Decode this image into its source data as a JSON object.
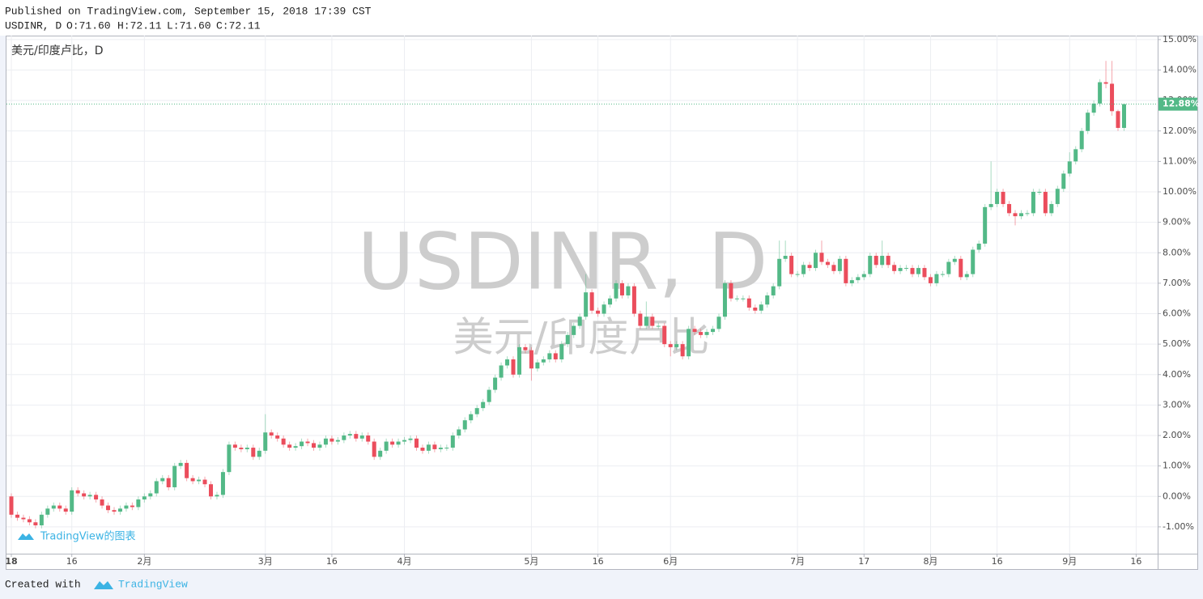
{
  "header": {
    "published": "Published on TradingView.com, September 15, 2018 17:39 CST",
    "symbol": "USDINR, D",
    "open": "O:71.60",
    "high": "H:72.11",
    "low": "L:71.60",
    "close": "C:72.11"
  },
  "footer": {
    "created_with": "Created with",
    "brand": "TradingView"
  },
  "chart_data": {
    "type": "candlestick",
    "pane_label": "美元/印度卢比，D",
    "watermark": "USDINR, D",
    "watermark_sub": "美元/印度卢比",
    "logo_text": "TradingView的图表",
    "up_color": "#53b987",
    "down_color": "#eb4d5c",
    "grid": true,
    "ylim": [
      -1.88,
      15.13
    ],
    "yticks": [
      {
        "value": 15,
        "label": "15.00%"
      },
      {
        "value": 14,
        "label": "14.00%"
      },
      {
        "value": 13,
        "label": "13.00%"
      },
      {
        "value": 12,
        "label": "12.00%"
      },
      {
        "value": 11,
        "label": "11.00%"
      },
      {
        "value": 10,
        "label": "10.00%"
      },
      {
        "value": 9,
        "label": "9.00%"
      },
      {
        "value": 8,
        "label": "8.00%"
      },
      {
        "value": 7,
        "label": "7.00%"
      },
      {
        "value": 6,
        "label": "6.00%"
      },
      {
        "value": 5,
        "label": "5.00%"
      },
      {
        "value": 4,
        "label": "4.00%"
      },
      {
        "value": 3,
        "label": "3.00%"
      },
      {
        "value": 2,
        "label": "2.00%"
      },
      {
        "value": 1,
        "label": "1.00%"
      },
      {
        "value": 0,
        "label": "0.00%"
      },
      {
        "value": -1,
        "label": "-1.00%"
      }
    ],
    "price_line": {
      "value": 12.88,
      "label": "12.88%"
    },
    "categories": [
      "18",
      null,
      null,
      null,
      null,
      null,
      null,
      null,
      null,
      null,
      "16",
      null,
      null,
      null,
      null,
      null,
      null,
      null,
      null,
      null,
      null,
      null,
      "2月",
      null,
      null,
      null,
      null,
      null,
      null,
      null,
      null,
      null,
      null,
      null,
      null,
      null,
      null,
      null,
      null,
      null,
      null,
      null,
      "3月",
      null,
      null,
      null,
      null,
      null,
      null,
      null,
      null,
      null,
      null,
      "16",
      null,
      null,
      null,
      null,
      null,
      null,
      null,
      null,
      null,
      null,
      null,
      "4月",
      null,
      null,
      null,
      null,
      null,
      null,
      null,
      null,
      null,
      null,
      null,
      null,
      null,
      null,
      null,
      null,
      null,
      null,
      null,
      null,
      "5月",
      null,
      null,
      null,
      null,
      null,
      null,
      null,
      null,
      null,
      null,
      "16",
      null,
      null,
      null,
      null,
      null,
      null,
      null,
      null,
      null,
      null,
      null,
      "6月",
      null,
      null,
      null,
      null,
      null,
      null,
      null,
      null,
      null,
      null,
      null,
      null,
      null,
      null,
      null,
      null,
      null,
      null,
      null,
      null,
      "7月",
      null,
      null,
      null,
      null,
      null,
      null,
      null,
      null,
      null,
      null,
      "17",
      null,
      null,
      null,
      null,
      null,
      null,
      null,
      null,
      null,
      null,
      "8月",
      null,
      null,
      null,
      null,
      null,
      null,
      null,
      null,
      null,
      null,
      "16",
      null,
      null,
      null,
      null,
      null,
      null,
      null,
      null,
      null,
      null,
      null,
      "9月",
      null,
      null,
      null,
      null,
      null,
      null,
      null,
      null,
      null,
      null,
      "16"
    ],
    "open": [
      0.0,
      -0.6,
      -0.7,
      -0.75,
      -0.85,
      -0.95,
      -0.6,
      -0.4,
      -0.3,
      -0.4,
      -0.5,
      0.2,
      0.1,
      0.0,
      0.05,
      -0.1,
      -0.3,
      -0.45,
      -0.5,
      -0.4,
      -0.3,
      -0.35,
      -0.1,
      0.0,
      0.1,
      0.5,
      0.6,
      0.3,
      1.0,
      1.1,
      0.6,
      0.5,
      0.55,
      0.4,
      0.0,
      0.05,
      0.8,
      1.7,
      1.6,
      1.55,
      1.6,
      1.3,
      1.5,
      2.1,
      2.0,
      1.9,
      1.7,
      1.6,
      1.65,
      1.8,
      1.75,
      1.6,
      1.7,
      1.9,
      1.8,
      1.85,
      2.0,
      2.05,
      1.9,
      2.0,
      1.8,
      1.3,
      1.5,
      1.8,
      1.7,
      1.8,
      1.85,
      1.9,
      1.6,
      1.5,
      1.7,
      1.55,
      1.6,
      1.6,
      2.0,
      2.2,
      2.5,
      2.7,
      2.9,
      3.1,
      3.5,
      3.9,
      4.3,
      4.5,
      4.0,
      4.9,
      4.8,
      4.2,
      4.4,
      4.5,
      4.7,
      4.5,
      5.0,
      5.3,
      5.6,
      5.9,
      6.7,
      6.1,
      6.0,
      6.3,
      6.5,
      7.0,
      6.6,
      6.9,
      6.0,
      5.6,
      5.9,
      5.6,
      5.6,
      5.0,
      4.9,
      5.0,
      4.6,
      5.5,
      5.4,
      5.3,
      5.4,
      5.5,
      5.9,
      7.0,
      6.5,
      6.5,
      6.5,
      6.2,
      6.1,
      6.3,
      6.6,
      6.9,
      7.8,
      7.9,
      7.3,
      7.3,
      7.6,
      7.5,
      8.0,
      7.7,
      7.6,
      7.4,
      7.8,
      7.0,
      7.1,
      7.2,
      7.3,
      7.9,
      7.6,
      7.9,
      7.6,
      7.4,
      7.5,
      7.5,
      7.3,
      7.5,
      7.2,
      7.0,
      7.3,
      7.3,
      7.7,
      7.8,
      7.2,
      7.3,
      8.1,
      8.3,
      9.5,
      9.6,
      10.0,
      9.6,
      9.3,
      9.2,
      9.3,
      9.3,
      10.0,
      10.0,
      9.3,
      9.6,
      10.1,
      10.6,
      11.0,
      11.4,
      12.0,
      12.6,
      12.9,
      13.6,
      13.55,
      12.65,
      12.1,
      null,
      null
    ],
    "high": [
      0.1,
      -0.5,
      -0.6,
      -0.65,
      -0.75,
      -0.5,
      -0.3,
      -0.2,
      -0.2,
      -0.3,
      0.3,
      0.3,
      0.2,
      0.15,
      0.15,
      0.0,
      -0.2,
      -0.35,
      -0.3,
      -0.2,
      -0.2,
      0.0,
      0.1,
      0.2,
      0.6,
      0.7,
      0.7,
      1.1,
      1.2,
      1.2,
      0.7,
      0.65,
      0.65,
      0.5,
      0.15,
      0.9,
      1.8,
      1.8,
      1.7,
      1.7,
      1.7,
      1.6,
      2.7,
      2.2,
      2.1,
      2.0,
      1.8,
      1.75,
      1.9,
      1.9,
      1.85,
      1.8,
      2.0,
      2.0,
      1.95,
      2.1,
      2.15,
      2.15,
      2.1,
      2.1,
      1.9,
      1.6,
      1.9,
      1.9,
      1.9,
      1.95,
      2.0,
      2.0,
      1.7,
      1.8,
      1.8,
      1.7,
      1.7,
      2.1,
      2.3,
      2.6,
      2.8,
      3.0,
      3.2,
      3.6,
      4.0,
      4.4,
      4.6,
      4.6,
      5.0,
      5.0,
      4.9,
      4.5,
      4.6,
      4.8,
      4.8,
      5.1,
      5.4,
      5.7,
      6.0,
      7.3,
      6.8,
      6.2,
      6.4,
      6.6,
      7.1,
      7.1,
      7.0,
      7.0,
      6.1,
      6.4,
      6.0,
      5.7,
      5.7,
      5.1,
      5.1,
      5.1,
      5.6,
      5.6,
      5.5,
      5.5,
      5.6,
      6.0,
      7.1,
      7.1,
      6.6,
      6.6,
      6.6,
      6.3,
      6.4,
      6.7,
      7.0,
      8.4,
      8.4,
      8.0,
      7.4,
      7.7,
      7.7,
      8.1,
      8.4,
      7.8,
      7.7,
      7.9,
      7.9,
      7.2,
      7.3,
      7.4,
      8.0,
      8.0,
      8.4,
      8.0,
      7.7,
      7.6,
      7.6,
      7.6,
      7.6,
      7.6,
      7.3,
      7.4,
      7.4,
      7.8,
      7.9,
      7.9,
      7.4,
      8.2,
      8.4,
      9.6,
      11.0,
      10.1,
      10.1,
      9.7,
      9.4,
      9.4,
      9.4,
      10.1,
      10.1,
      10.1,
      9.7,
      10.2,
      10.7,
      11.3,
      11.5,
      12.1,
      12.7,
      13.0,
      13.7,
      14.3,
      14.3,
      12.7,
      12.9,
      null,
      null
    ],
    "low": [
      -0.7,
      -0.8,
      -0.85,
      -0.95,
      -1.05,
      -1.05,
      -0.7,
      -0.5,
      -0.5,
      -0.6,
      -0.6,
      0.0,
      -0.1,
      -0.1,
      -0.2,
      -0.4,
      -0.55,
      -0.6,
      -0.6,
      -0.5,
      -0.45,
      -0.45,
      -0.2,
      -0.1,
      0.0,
      0.4,
      0.2,
      0.2,
      0.9,
      0.5,
      0.4,
      0.4,
      0.3,
      -0.1,
      -0.1,
      -0.05,
      0.7,
      1.5,
      1.45,
      1.45,
      1.2,
      1.2,
      1.4,
      1.9,
      1.8,
      1.6,
      1.5,
      1.5,
      1.55,
      1.65,
      1.5,
      1.5,
      1.6,
      1.7,
      1.7,
      1.75,
      1.9,
      1.8,
      1.8,
      1.7,
      1.2,
      1.2,
      1.4,
      1.6,
      1.6,
      1.7,
      1.75,
      1.5,
      1.4,
      1.4,
      1.45,
      1.45,
      1.5,
      1.5,
      1.9,
      2.1,
      2.4,
      2.6,
      2.8,
      3.0,
      3.4,
      3.8,
      4.2,
      3.9,
      3.9,
      4.7,
      3.8,
      4.1,
      4.3,
      4.4,
      4.4,
      4.4,
      4.9,
      5.2,
      5.5,
      5.8,
      6.0,
      5.9,
      5.9,
      6.2,
      6.4,
      6.5,
      6.5,
      5.9,
      5.5,
      5.5,
      5.5,
      5.5,
      4.9,
      4.6,
      4.8,
      4.5,
      4.5,
      5.3,
      5.2,
      5.2,
      5.3,
      5.4,
      5.8,
      6.4,
      6.4,
      6.4,
      6.1,
      6.0,
      6.0,
      6.2,
      6.5,
      6.8,
      7.7,
      7.2,
      7.2,
      7.2,
      7.4,
      7.4,
      7.6,
      7.5,
      7.3,
      7.3,
      6.9,
      6.9,
      7.0,
      7.1,
      7.2,
      7.5,
      7.5,
      7.5,
      7.3,
      7.3,
      7.4,
      7.2,
      7.2,
      7.1,
      6.9,
      6.9,
      7.2,
      7.2,
      7.6,
      7.1,
      7.1,
      7.2,
      8.0,
      8.2,
      9.4,
      9.5,
      9.5,
      9.2,
      8.9,
      9.1,
      9.2,
      9.2,
      9.9,
      9.2,
      9.2,
      9.5,
      10.0,
      10.5,
      10.9,
      11.3,
      11.9,
      12.5,
      12.8,
      13.4,
      12.5,
      12.0,
      12.0,
      null,
      null
    ],
    "close": [
      -0.6,
      -0.7,
      -0.75,
      -0.85,
      -0.95,
      -0.6,
      -0.4,
      -0.3,
      -0.4,
      -0.5,
      0.2,
      0.1,
      0.0,
      0.05,
      -0.1,
      -0.3,
      -0.45,
      -0.5,
      -0.4,
      -0.3,
      -0.35,
      -0.1,
      0.0,
      0.1,
      0.5,
      0.6,
      0.3,
      1.0,
      1.1,
      0.6,
      0.5,
      0.55,
      0.4,
      0.0,
      0.05,
      0.8,
      1.7,
      1.6,
      1.55,
      1.6,
      1.3,
      1.5,
      2.1,
      2.0,
      1.9,
      1.7,
      1.6,
      1.65,
      1.8,
      1.75,
      1.6,
      1.7,
      1.9,
      1.8,
      1.85,
      2.0,
      2.05,
      1.9,
      2.0,
      1.8,
      1.3,
      1.5,
      1.8,
      1.7,
      1.8,
      1.85,
      1.9,
      1.6,
      1.5,
      1.7,
      1.55,
      1.6,
      1.6,
      2.0,
      2.2,
      2.5,
      2.7,
      2.9,
      3.1,
      3.5,
      3.9,
      4.3,
      4.5,
      4.0,
      4.9,
      4.8,
      4.2,
      4.4,
      4.5,
      4.7,
      4.5,
      5.0,
      5.3,
      5.6,
      5.9,
      6.7,
      6.1,
      6.0,
      6.3,
      6.5,
      7.0,
      6.6,
      6.9,
      6.0,
      5.6,
      5.9,
      5.6,
      5.6,
      5.0,
      4.9,
      5.0,
      4.6,
      5.5,
      5.4,
      5.3,
      5.4,
      5.5,
      5.9,
      7.0,
      6.5,
      6.5,
      6.5,
      6.2,
      6.1,
      6.3,
      6.6,
      6.9,
      7.8,
      7.9,
      7.3,
      7.3,
      7.6,
      7.5,
      8.0,
      7.7,
      7.6,
      7.4,
      7.8,
      7.0,
      7.1,
      7.2,
      7.3,
      7.9,
      7.6,
      7.9,
      7.6,
      7.4,
      7.5,
      7.5,
      7.3,
      7.5,
      7.2,
      7.0,
      7.3,
      7.3,
      7.7,
      7.8,
      7.2,
      7.3,
      8.1,
      8.3,
      9.5,
      9.6,
      10.0,
      9.6,
      9.3,
      9.2,
      9.3,
      9.3,
      10.0,
      10.0,
      9.3,
      9.6,
      10.1,
      10.6,
      11.0,
      11.4,
      12.0,
      12.6,
      12.9,
      13.6,
      13.55,
      12.65,
      12.1,
      12.88,
      null,
      null
    ]
  }
}
